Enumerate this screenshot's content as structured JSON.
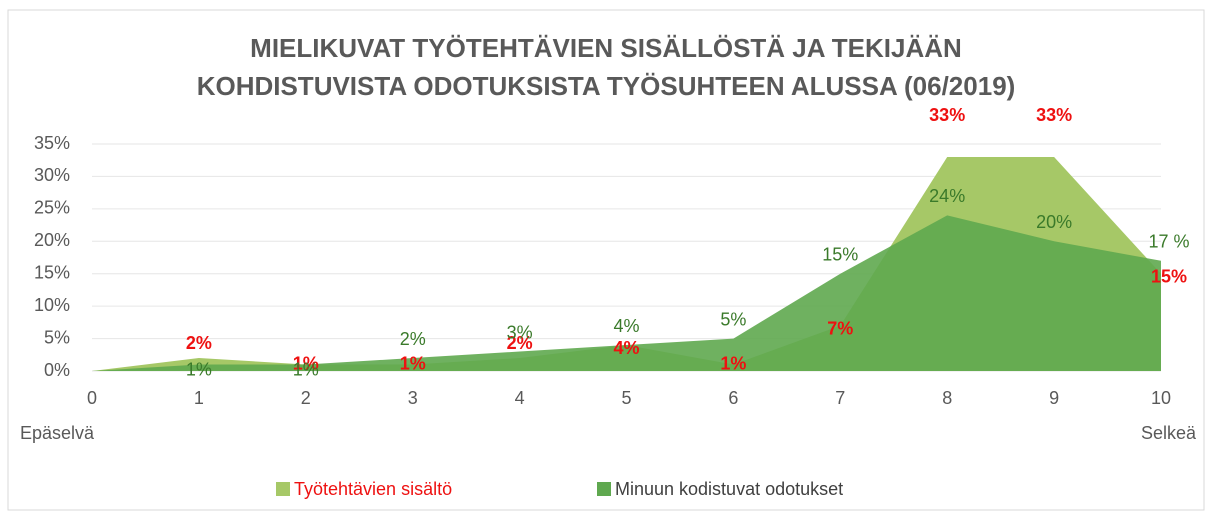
{
  "chart_data": {
    "type": "area",
    "title_lines": [
      "MIELIKUVAT TYÖTEHTÄVIEN SISÄLLÖSTÄ JA TEKIJÄÄN",
      "KOHDISTUVISTA ODOTUKSISTA TYÖSUHTEEN ALUSSA (06/2019)"
    ],
    "x": [
      0,
      1,
      2,
      3,
      4,
      5,
      6,
      7,
      8,
      9,
      10
    ],
    "xlim": [
      0,
      10
    ],
    "xticks": [
      0,
      1,
      2,
      3,
      4,
      5,
      6,
      7,
      8,
      9,
      10
    ],
    "x_end_labels": [
      "Epäselvä",
      "Selkeä"
    ],
    "ylim": [
      0,
      35
    ],
    "yticks": [
      {
        "value": 0,
        "label": "0%"
      },
      {
        "value": 5,
        "label": "5%"
      },
      {
        "value": 10,
        "label": "10%"
      },
      {
        "value": 15,
        "label": "15%"
      },
      {
        "value": 20,
        "label": "20%"
      },
      {
        "value": 25,
        "label": "25%"
      },
      {
        "value": 30,
        "label": "30%"
      },
      {
        "value": 35,
        "label": "35%"
      }
    ],
    "grid": true,
    "legend": "bottom",
    "series": [
      {
        "name": "Työtehtävien sisältö",
        "color": "#a6c867",
        "label_color": "#ee1111",
        "legend_text_color": "#ee1111",
        "values": [
          0,
          2,
          1,
          1,
          2,
          4,
          1,
          7,
          33,
          33,
          15
        ],
        "value_labels": [
          null,
          "2%",
          "1%",
          "1%",
          "2%",
          "4%",
          "1%",
          "7%",
          "33%",
          "33%",
          "15%"
        ]
      },
      {
        "name": "Minuun kodistuvat odotukset",
        "color": "#5fa84f",
        "label_color": "#3a7a2a",
        "legend_text_color": "#404040",
        "values": [
          0,
          1,
          1,
          2,
          3,
          4,
          5,
          15,
          24,
          20,
          17
        ],
        "value_labels": [
          null,
          "1%",
          "1%",
          "2%",
          "3%",
          "4%",
          "5%",
          "15%",
          "24%",
          "20%",
          "17 %"
        ]
      }
    ]
  }
}
